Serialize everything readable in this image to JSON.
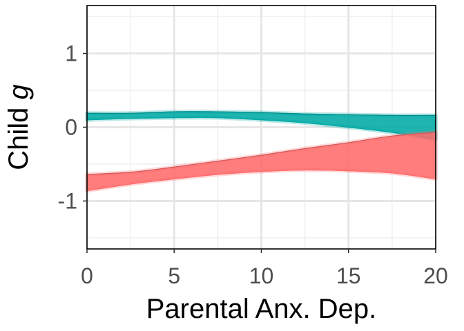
{
  "chart_data": {
    "type": "area",
    "xlabel": "Parental Anx. Dep.",
    "ylabel_prefix": "Child ",
    "ylabel_var": "g",
    "xlim": [
      0,
      20
    ],
    "ylim": [
      -1.65,
      1.65
    ],
    "x_ticks": [
      0,
      5,
      10,
      15,
      20
    ],
    "y_ticks": [
      -1,
      0,
      1
    ],
    "x_tick_labels": [
      "0",
      "5",
      "10",
      "15",
      "20"
    ],
    "y_tick_labels": [
      "-1",
      "0",
      "1"
    ],
    "grid": true,
    "legend": "none",
    "series": [
      {
        "color": "#00A9A5",
        "x": [
          0,
          2.5,
          5,
          7.5,
          10,
          12.5,
          15,
          17.5,
          20
        ],
        "lower": [
          0.1,
          0.12,
          0.13,
          0.13,
          0.1,
          0.06,
          0.0,
          -0.07,
          -0.17
        ],
        "upper": [
          0.19,
          0.19,
          0.21,
          0.21,
          0.2,
          0.18,
          0.17,
          0.16,
          0.16
        ]
      },
      {
        "color": "#FF6B6B",
        "x": [
          0,
          2.5,
          5,
          7.5,
          10,
          12.5,
          15,
          17.5,
          20
        ],
        "lower": [
          -0.86,
          -0.77,
          -0.7,
          -0.64,
          -0.6,
          -0.58,
          -0.59,
          -0.62,
          -0.7
        ],
        "upper": [
          -0.64,
          -0.61,
          -0.54,
          -0.46,
          -0.38,
          -0.29,
          -0.21,
          -0.12,
          -0.07
        ]
      }
    ]
  }
}
